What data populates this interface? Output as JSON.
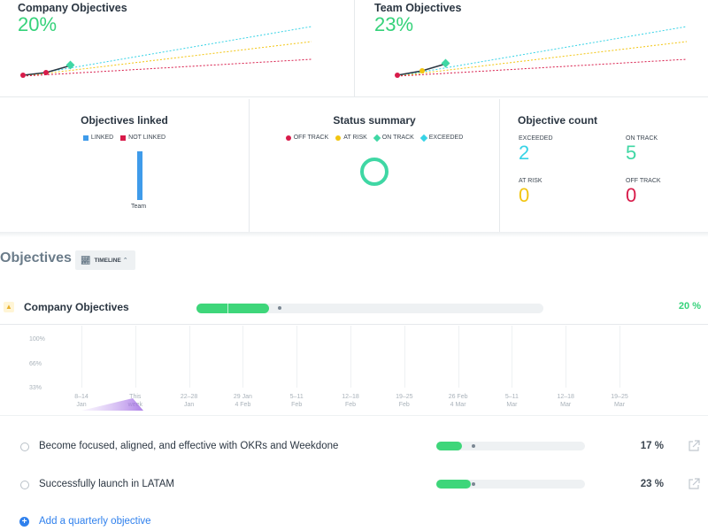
{
  "top_cards": [
    {
      "title": "Company Objectives",
      "percent": "20%"
    },
    {
      "title": "Team Objectives",
      "percent": "23%"
    }
  ],
  "summary": {
    "linked": {
      "title": "Objectives linked",
      "legend": [
        {
          "label": "LINKED",
          "color": "#3f9bea"
        },
        {
          "label": "NOT LINKED",
          "color": "#d81b4a"
        }
      ],
      "bar_label": "Team"
    },
    "status": {
      "title": "Status summary",
      "legend": [
        {
          "label": "OFF TRACK",
          "color": "#d81b4a",
          "shape": "dot"
        },
        {
          "label": "AT RISK",
          "color": "#f2c511",
          "shape": "dot"
        },
        {
          "label": "ON TRACK",
          "color": "#3fd7a4",
          "shape": "diamond"
        },
        {
          "label": "EXCEEDED",
          "color": "#37d3e6",
          "shape": "diamond"
        }
      ]
    },
    "count": {
      "title": "Objective count",
      "items": [
        {
          "label": "EXCEEDED",
          "value": "2",
          "color": "#37d3e6"
        },
        {
          "label": "ON TRACK",
          "value": "5",
          "color": "#3fd7a4"
        },
        {
          "label": "AT RISK",
          "value": "0",
          "color": "#f2c511"
        },
        {
          "label": "OFF TRACK",
          "value": "0",
          "color": "#d81b4a"
        }
      ]
    }
  },
  "objectives": {
    "header": "Objectives",
    "view_button": "TIMELINE",
    "company_row": {
      "title": "Company Objectives",
      "percent": "20 %",
      "progress": 0.21
    },
    "chart": {
      "y_labels": [
        "100%",
        "66%",
        "33%"
      ],
      "x_labels": [
        [
          "8–14",
          "Jan"
        ],
        [
          "This",
          "week"
        ],
        [
          "22–28",
          "Jan"
        ],
        [
          "29 Jan",
          "4 Feb"
        ],
        [
          "5–11",
          "Feb"
        ],
        [
          "12–18",
          "Feb"
        ],
        [
          "19–25",
          "Feb"
        ],
        [
          "26 Feb",
          "4 Mar"
        ],
        [
          "5–11",
          "Mar"
        ],
        [
          "12–18",
          "Mar"
        ],
        [
          "19–25",
          "Mar"
        ]
      ]
    },
    "items": [
      {
        "title": "Become focused, aligned, and effective with OKRs and Weekdone",
        "percent": "17  %",
        "progress": 0.17
      },
      {
        "title": "Successfully launch in LATAM",
        "percent": "23  %",
        "progress": 0.23
      }
    ],
    "add_label": "Add a quarterly objective"
  },
  "colors": {
    "accent_green": "#35d27a",
    "link_blue": "#2f80ed",
    "off_track": "#d81b4a",
    "at_risk": "#f2c511",
    "on_track": "#3fd7a4",
    "exceeded": "#37d3e6"
  }
}
